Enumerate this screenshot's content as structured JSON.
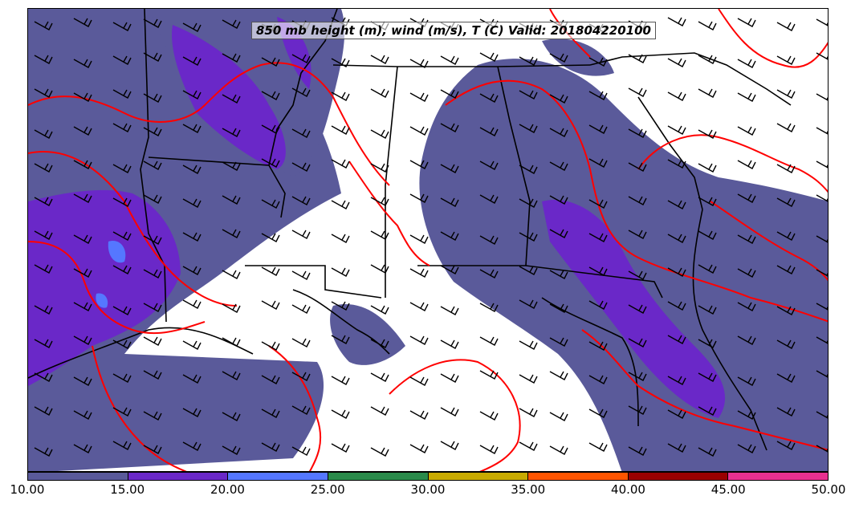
{
  "title": "850 mb height (m), wind (m/s), T (C) Valid: 201804220100",
  "colorbar": {
    "ticks": [
      "10.00",
      "15.00",
      "20.00",
      "25.00",
      "30.00",
      "35.00",
      "40.00",
      "45.00",
      "50.00"
    ],
    "colors": [
      "#5a5a9a",
      "#6a28c8",
      "#5577ff",
      "#2a8a4a",
      "#c8aa00",
      "#ff5500",
      "#990000",
      "#e83090"
    ]
  },
  "colors": {
    "temperature_contour": "#ff0000",
    "borders": "#000000",
    "wind_barbs": "#000000"
  }
}
